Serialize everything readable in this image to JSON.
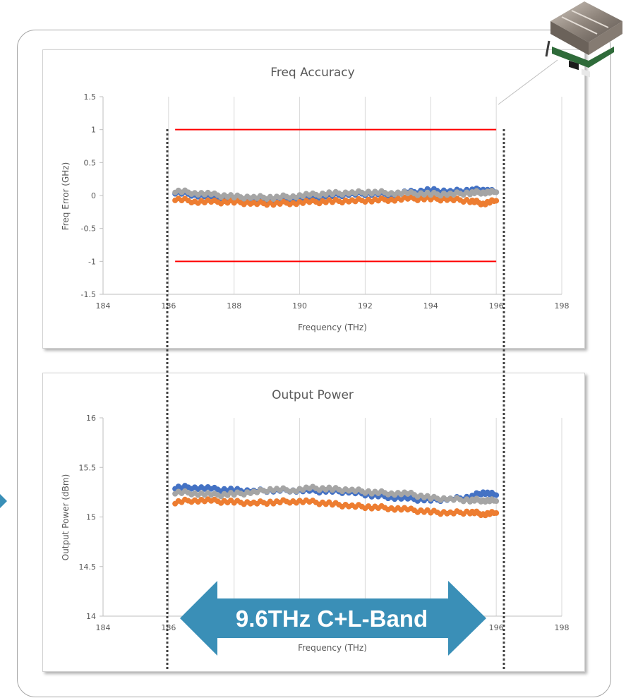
{
  "colors": {
    "series_blue": "#4472c4",
    "series_orange": "#ed7d31",
    "series_gray": "#a5a5a5",
    "limit_red": "#ff0000",
    "band_arrow": "#3a8fb7"
  },
  "icons": [
    "transceiver-module-image",
    "left-arrow-icon"
  ],
  "band_label": "9.6THz C+L-Band",
  "band_range": [
    186.1,
    196.0
  ],
  "chart_data": [
    {
      "type": "scatter",
      "title": "Freq Accuracy",
      "xlabel": "Frequency (THz)",
      "ylabel": "Freq Error (GHz)",
      "xlim": [
        184,
        198
      ],
      "ylim": [
        -1.5,
        1.5
      ],
      "xticks": [
        184,
        186,
        188,
        190,
        192,
        194,
        196,
        198
      ],
      "yticks": [
        -1.5,
        -1,
        -0.5,
        0,
        0.5,
        1,
        1.5
      ],
      "ytick_labels": [
        "-1.5",
        "-1",
        "-0.5",
        "0",
        "0.5",
        "1",
        "1.5"
      ],
      "grid": "vertical",
      "limit_lines": [
        {
          "y": 1,
          "x": [
            186.2,
            196.0
          ]
        },
        {
          "y": -1,
          "x": [
            186.2,
            196.0
          ]
        }
      ],
      "series_x": [
        186.2,
        186.8,
        187.4,
        188.0,
        188.6,
        189.2,
        189.8,
        190.4,
        191.0,
        191.6,
        192.2,
        192.8,
        193.4,
        194.0,
        194.6,
        195.2,
        195.6,
        196.0
      ],
      "series": [
        {
          "color": "blue",
          "values": [
            0.05,
            0.01,
            -0.02,
            -0.03,
            -0.05,
            -0.04,
            -0.03,
            -0.02,
            0.0,
            0.02,
            0.03,
            0.02,
            0.05,
            0.08,
            0.06,
            0.08,
            0.09,
            0.05
          ]
        },
        {
          "color": "orange",
          "values": [
            -0.05,
            -0.09,
            -0.1,
            -0.1,
            -0.12,
            -0.12,
            -0.11,
            -0.1,
            -0.09,
            -0.08,
            -0.07,
            -0.06,
            -0.05,
            -0.05,
            -0.06,
            -0.08,
            -0.12,
            -0.08
          ]
        },
        {
          "color": "gray",
          "values": [
            0.07,
            0.04,
            0.01,
            -0.02,
            -0.03,
            -0.03,
            -0.01,
            0.01,
            0.03,
            0.04,
            0.05,
            0.04,
            0.03,
            0.02,
            0.02,
            0.04,
            0.05,
            0.05
          ]
        }
      ]
    },
    {
      "type": "scatter",
      "title": "Output Power",
      "xlabel": "Frequency (THz)",
      "ylabel": "Output Power (dBm)",
      "xlim": [
        184,
        198
      ],
      "ylim": [
        14,
        16
      ],
      "xticks": [
        184,
        186,
        188,
        190,
        192,
        194,
        196,
        198
      ],
      "yticks": [
        14,
        14.5,
        15,
        15.5,
        16
      ],
      "ytick_labels": [
        "14",
        "14.5",
        "15",
        "15.5",
        "16"
      ],
      "grid": "vertical",
      "series_x": [
        186.2,
        186.8,
        187.4,
        188.0,
        188.6,
        189.2,
        189.8,
        190.4,
        191.0,
        191.6,
        192.2,
        192.8,
        193.4,
        194.0,
        194.6,
        195.2,
        195.6,
        196.0
      ],
      "series": [
        {
          "color": "blue",
          "values": [
            15.3,
            15.3,
            15.28,
            15.27,
            15.26,
            15.27,
            15.27,
            15.26,
            15.26,
            15.25,
            15.22,
            15.2,
            15.18,
            15.17,
            15.18,
            15.2,
            15.25,
            15.22
          ]
        },
        {
          "color": "orange",
          "values": [
            15.15,
            15.17,
            15.16,
            15.15,
            15.14,
            15.15,
            15.16,
            15.15,
            15.13,
            15.11,
            15.1,
            15.09,
            15.07,
            15.05,
            15.04,
            15.05,
            15.03,
            15.04
          ]
        },
        {
          "color": "gray",
          "values": [
            15.25,
            15.24,
            15.22,
            15.23,
            15.25,
            15.28,
            15.27,
            15.29,
            15.28,
            15.27,
            15.25,
            15.24,
            15.23,
            15.19,
            15.18,
            15.17,
            15.17,
            15.16
          ]
        }
      ]
    }
  ]
}
